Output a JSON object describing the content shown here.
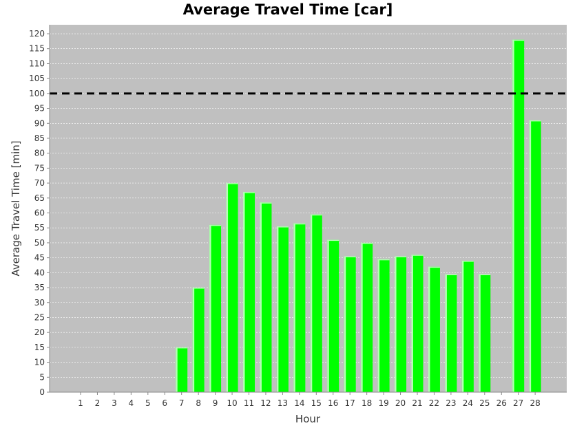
{
  "chart_data": {
    "type": "bar",
    "title": "Average Travel Time [car]",
    "xlabel": "Hour",
    "ylabel": "Average Travel Time [min]",
    "categories": [
      "1",
      "2",
      "3",
      "4",
      "5",
      "6",
      "7",
      "8",
      "9",
      "10",
      "11",
      "12",
      "13",
      "14",
      "15",
      "16",
      "17",
      "18",
      "19",
      "20",
      "21",
      "22",
      "23",
      "24",
      "25",
      "26",
      "27",
      "28"
    ],
    "values": [
      0,
      0,
      0,
      0,
      0,
      0,
      15,
      35,
      56,
      70,
      67,
      63.5,
      55.5,
      56.5,
      59.5,
      51,
      45.5,
      50,
      44.5,
      45.5,
      46,
      42,
      39.5,
      44,
      39.5,
      0,
      118,
      91
    ],
    "ylim": [
      0,
      123
    ],
    "yticks": [
      0,
      5,
      10,
      15,
      20,
      25,
      30,
      35,
      40,
      45,
      50,
      55,
      60,
      65,
      70,
      75,
      80,
      85,
      90,
      95,
      100,
      105,
      110,
      115,
      120
    ],
    "reference_line": 100,
    "grid": true,
    "legend": "none",
    "colors": {
      "bar": "#00ff00",
      "bar_highlight": "#b6ffb6",
      "plot_background": "#c0c0c0",
      "grid": "#ffffff",
      "reference_line": "#000000"
    }
  }
}
